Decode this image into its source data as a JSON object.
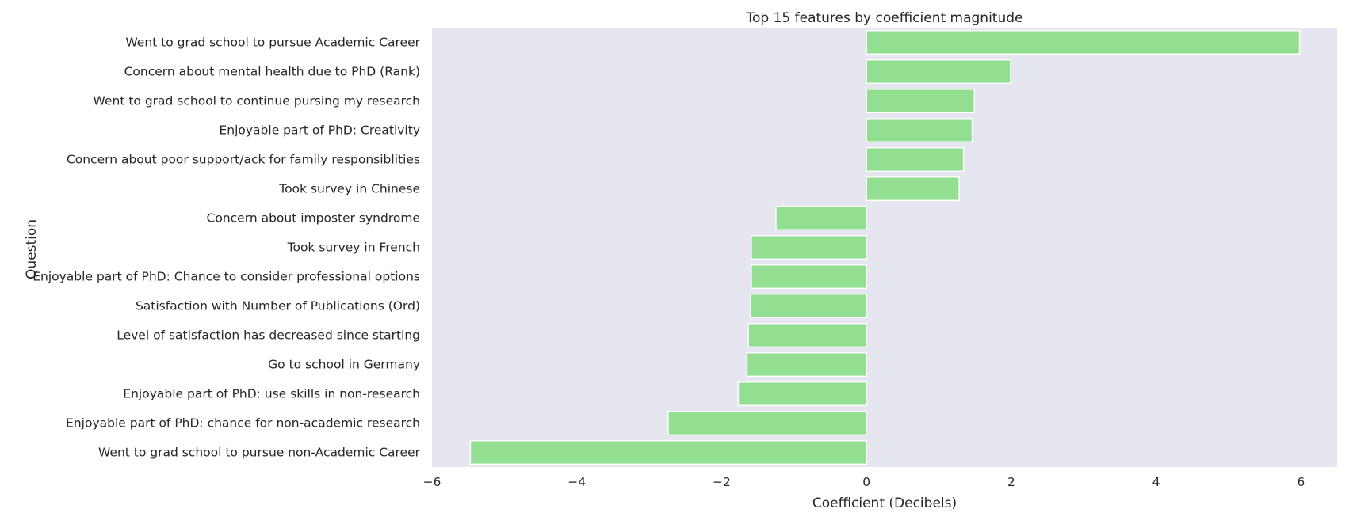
{
  "chart_data": {
    "type": "bar",
    "orientation": "horizontal",
    "title": "Top 15 features by coefficient magnitude",
    "xlabel": "Coefficient (Decibels)",
    "ylabel": "Question",
    "xlim": [
      -6,
      6.5
    ],
    "xticks": [
      -6,
      -4,
      -2,
      0,
      2,
      4,
      6
    ],
    "xtick_labels": [
      "−6",
      "−4",
      "−2",
      "0",
      "2",
      "4",
      "6"
    ],
    "grid": false,
    "colors": {
      "bar": "#92df91",
      "plot_bg": "#e6e6f0",
      "bar_edge": "#ffffff",
      "text": "#262626"
    },
    "categories": [
      "Went to grad school to pursue Academic Career",
      "Concern about mental health due to PhD (Rank)",
      "Went to grad school to continue pursing my research",
      "Enjoyable part of PhD: Creativity",
      "Concern about poor support/ack for family responsiblities",
      "Took survey in Chinese",
      "Concern about imposter syndrome",
      "Took survey in French",
      "Enjoyable part of PhD: Chance to consider professional options",
      "Satisfaction with Number of Publications (Ord)",
      "Level of satisfaction has decreased since starting",
      "Go to school in Germany",
      "Enjoyable part of PhD: use skills in non-research",
      "Enjoyable part of PhD: chance for non-academic research",
      "Went to grad school to pursue non-Academic Career"
    ],
    "values": [
      5.98,
      1.99,
      1.49,
      1.46,
      1.34,
      1.28,
      -1.25,
      -1.59,
      -1.59,
      -1.6,
      -1.63,
      -1.65,
      -1.77,
      -2.74,
      -5.47
    ]
  }
}
